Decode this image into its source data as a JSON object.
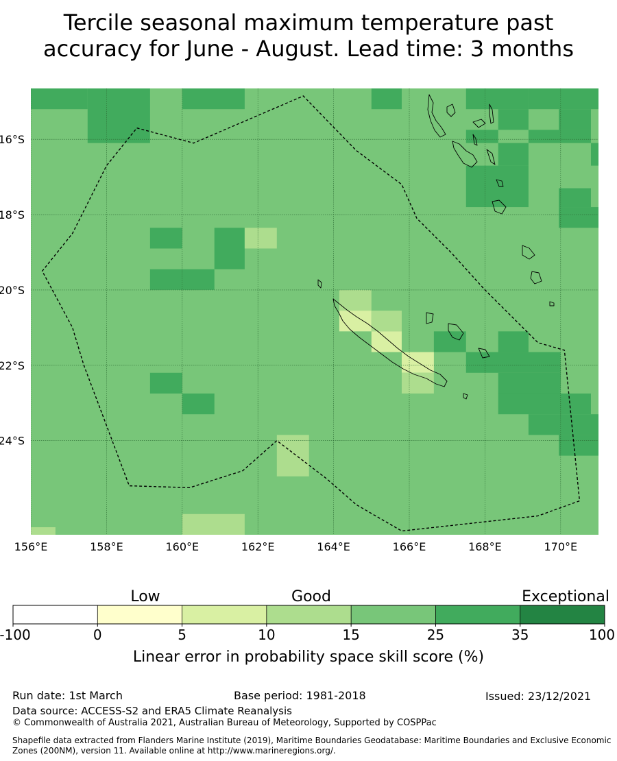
{
  "title_line1": "Tercile seasonal maximum temperature past",
  "title_line2": "accuracy for June - August. Lead time: 3 months",
  "map": {
    "lon_range": [
      156,
      171
    ],
    "lat_range": [
      -26.5,
      -14.65
    ],
    "lon_ticks": [
      {
        "value": 156,
        "label": "156°E"
      },
      {
        "value": 158,
        "label": "158°E"
      },
      {
        "value": 160,
        "label": "160°E"
      },
      {
        "value": 162,
        "label": "162°E"
      },
      {
        "value": 164,
        "label": "164°E"
      },
      {
        "value": 166,
        "label": "166°E"
      },
      {
        "value": 168,
        "label": "168°E"
      },
      {
        "value": 170,
        "label": "170°E"
      }
    ],
    "lat_ticks": [
      {
        "value": -16,
        "label": "16°S"
      },
      {
        "value": -18,
        "label": "18°S"
      },
      {
        "value": -20,
        "label": "20°S"
      },
      {
        "value": -22,
        "label": "22°S"
      },
      {
        "value": -24,
        "label": "24°S"
      }
    ],
    "background_class": "15-25",
    "grid": true,
    "skill_cells": [
      {
        "lon": 156.0,
        "lat": -14.65,
        "lon2": 157.5,
        "lat2": -15.2,
        "class": "25-35"
      },
      {
        "lon": 157.5,
        "lat": -14.65,
        "lon2": 159.15,
        "lat2": -16.1,
        "class": "25-35"
      },
      {
        "lon": 160.0,
        "lat": -14.65,
        "lon2": 161.65,
        "lat2": -15.2,
        "class": "25-35"
      },
      {
        "lon": 165.0,
        "lat": -14.65,
        "lon2": 165.8,
        "lat2": -15.2,
        "class": "25-35"
      },
      {
        "lon": 167.5,
        "lat": -14.65,
        "lon2": 169.15,
        "lat2": -15.2,
        "class": "25-35"
      },
      {
        "lon": 169.15,
        "lat": -14.65,
        "lon2": 171.0,
        "lat2": -15.2,
        "class": "25-35"
      },
      {
        "lon": 168.35,
        "lat": -15.2,
        "lon2": 169.15,
        "lat2": -15.75,
        "class": "25-35"
      },
      {
        "lon": 169.95,
        "lat": -15.2,
        "lon2": 170.8,
        "lat2": -15.75,
        "class": "25-35"
      },
      {
        "lon": 167.5,
        "lat": -15.75,
        "lon2": 168.35,
        "lat2": -16.1,
        "class": "25-35"
      },
      {
        "lon": 168.35,
        "lat": -15.75,
        "lon2": 169.15,
        "lat2": -15.75,
        "class": "25-35"
      },
      {
        "lon": 169.15,
        "lat": -15.75,
        "lon2": 170.8,
        "lat2": -16.1,
        "class": "25-35"
      },
      {
        "lon": 170.8,
        "lat": -16.1,
        "lon2": 171.0,
        "lat2": -16.7,
        "class": "25-35"
      },
      {
        "lon": 168.35,
        "lat": -16.1,
        "lon2": 169.15,
        "lat2": -16.7,
        "class": "25-35"
      },
      {
        "lon": 167.5,
        "lat": -16.7,
        "lon2": 169.15,
        "lat2": -17.8,
        "class": "25-35"
      },
      {
        "lon": 169.95,
        "lat": -17.3,
        "lon2": 170.8,
        "lat2": -17.8,
        "class": "25-35"
      },
      {
        "lon": 169.95,
        "lat": -17.8,
        "lon2": 171.0,
        "lat2": -18.35,
        "class": "25-35"
      },
      {
        "lon": 159.15,
        "lat": -18.35,
        "lon2": 160.0,
        "lat2": -18.9,
        "class": "25-35"
      },
      {
        "lon": 160.85,
        "lat": -18.35,
        "lon2": 161.65,
        "lat2": -19.45,
        "class": "25-35"
      },
      {
        "lon": 159.15,
        "lat": -19.45,
        "lon2": 160.85,
        "lat2": -20.0,
        "class": "25-35"
      },
      {
        "lon": 166.65,
        "lat": -21.1,
        "lon2": 167.5,
        "lat2": -21.65,
        "class": "25-35"
      },
      {
        "lon": 168.35,
        "lat": -21.1,
        "lon2": 169.15,
        "lat2": -21.65,
        "class": "25-35"
      },
      {
        "lon": 167.5,
        "lat": -21.65,
        "lon2": 170.0,
        "lat2": -22.2,
        "class": "25-35"
      },
      {
        "lon": 168.35,
        "lat": -22.2,
        "lon2": 170.0,
        "lat2": -22.75,
        "class": "25-35"
      },
      {
        "lon": 168.35,
        "lat": -22.75,
        "lon2": 170.8,
        "lat2": -23.3,
        "class": "25-35"
      },
      {
        "lon": 169.15,
        "lat": -23.3,
        "lon2": 171.0,
        "lat2": -23.85,
        "class": "25-35"
      },
      {
        "lon": 169.95,
        "lat": -23.85,
        "lon2": 171.0,
        "lat2": -24.4,
        "class": "25-35"
      },
      {
        "lon": 159.15,
        "lat": -22.2,
        "lon2": 160.0,
        "lat2": -22.75,
        "class": "25-35"
      },
      {
        "lon": 160.0,
        "lat": -22.75,
        "lon2": 160.85,
        "lat2": -23.3,
        "class": "25-35"
      },
      {
        "lon": 161.65,
        "lat": -18.35,
        "lon2": 162.5,
        "lat2": -18.9,
        "class": "10-15"
      },
      {
        "lon": 164.15,
        "lat": -20.0,
        "lon2": 165.0,
        "lat2": -20.55,
        "class": "10-15"
      },
      {
        "lon": 164.15,
        "lat": -20.55,
        "lon2": 165.0,
        "lat2": -21.1,
        "class": "5-10"
      },
      {
        "lon": 165.0,
        "lat": -20.55,
        "lon2": 165.8,
        "lat2": -21.1,
        "class": "10-15"
      },
      {
        "lon": 165.0,
        "lat": -21.1,
        "lon2": 165.8,
        "lat2": -21.65,
        "class": "5-10"
      },
      {
        "lon": 165.8,
        "lat": -21.65,
        "lon2": 166.65,
        "lat2": -22.2,
        "class": "5-10"
      },
      {
        "lon": 165.8,
        "lat": -22.2,
        "lon2": 166.65,
        "lat2": -22.75,
        "class": "10-15"
      },
      {
        "lon": 162.5,
        "lat": -23.85,
        "lon2": 163.35,
        "lat2": -24.95,
        "class": "10-15"
      },
      {
        "lon": 160.0,
        "lat": -25.95,
        "lon2": 161.65,
        "lat2": -26.5,
        "class": "10-15"
      },
      {
        "lon": 156.0,
        "lat": -26.3,
        "lon2": 156.65,
        "lat2": -26.5,
        "class": "10-15"
      }
    ],
    "eez_boundary": [
      [
        158.8,
        -15.7
      ],
      [
        160.3,
        -16.1
      ],
      [
        163.2,
        -14.85
      ],
      [
        164.6,
        -16.3
      ],
      [
        165.8,
        -17.2
      ],
      [
        166.2,
        -18.1
      ],
      [
        167.1,
        -19.0
      ],
      [
        168.0,
        -20.0
      ],
      [
        169.4,
        -21.4
      ],
      [
        170.1,
        -21.6
      ],
      [
        170.5,
        -25.6
      ],
      [
        169.4,
        -26.0
      ],
      [
        165.8,
        -26.4
      ],
      [
        164.6,
        -25.7
      ],
      [
        163.8,
        -25.0
      ],
      [
        162.5,
        -24.0
      ],
      [
        161.6,
        -24.8
      ],
      [
        160.2,
        -25.25
      ],
      [
        158.6,
        -25.2
      ],
      [
        157.4,
        -22.0
      ],
      [
        157.1,
        -21.0
      ],
      [
        156.3,
        -19.5
      ],
      [
        157.1,
        -18.5
      ],
      [
        158.0,
        -16.7
      ],
      [
        158.8,
        -15.7
      ]
    ]
  },
  "colorbar": {
    "categories": [
      "Low",
      "Good",
      "Exceptional"
    ],
    "bins": [
      {
        "label": "-100",
        "color": "#ffffff"
      },
      {
        "label": "0",
        "color": "#ffffcc"
      },
      {
        "label": "5",
        "color": "#d9f0a3"
      },
      {
        "label": "10",
        "color": "#addd8e"
      },
      {
        "label": "15",
        "color": "#78c679"
      },
      {
        "label": "25",
        "color": "#41ab5d"
      },
      {
        "label": "35",
        "color": "#238443"
      },
      {
        "label": "100",
        "color": ""
      }
    ],
    "title": "Linear error in probability space skill score (%)"
  },
  "class_colors": {
    "5-10": "#d9f0a3",
    "10-15": "#addd8e",
    "15-25": "#78c679",
    "25-35": "#41ab5d"
  },
  "footer": {
    "run_date": "Run date: 1st March",
    "base_period": "Base period: 1981-2018",
    "issued": "Issued: 23/12/2021",
    "data_source": "Data source: ACCESS-S2 and ERA5 Climate Reanalysis",
    "copyright": "© Commonwealth of Australia 2021, Australian Bureau of Meteorology, Supported by COSPPac",
    "shapefile": "Shapefile data extracted from Flanders Marine Institute (2019), Maritime Boundaries Geodatabase: Maritime Boundaries and Exclusive Economic Zones (200NM), version 11. Available online at http://www.marineregions.org/."
  }
}
